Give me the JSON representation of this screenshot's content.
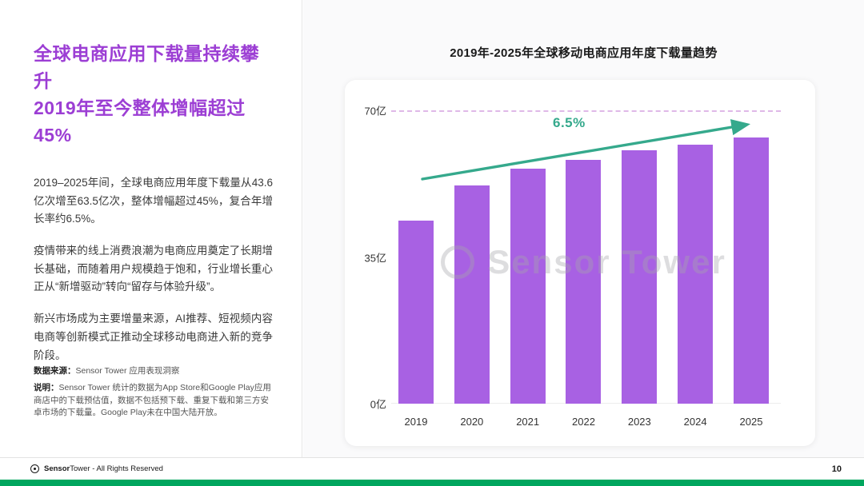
{
  "page": {
    "colors": {
      "accent_purple": "#9C3ED4",
      "bar_purple": "#A861E3",
      "trend_green": "#35A98C",
      "footer_green": "#00A65E"
    },
    "footer": {
      "brand_bold": "Sensor",
      "brand_light": "Tower",
      "rights": " - All Rights Reserved",
      "page_number": "10"
    }
  },
  "left_panel": {
    "title_line1": "全球电商应用下载量持续攀升",
    "title_line2": "2019年至今整体增幅超过45%",
    "paragraphs": [
      "2019–2025年间，全球电商应用年度下载量从43.6亿次增至63.5亿次，整体增幅超过45%，复合年增长率约6.5%。",
      "疫情带来的线上消费浪潮为电商应用奠定了长期增长基础，而随着用户规模趋于饱和，行业增长重心正从“新增驱动”转向“留存与体验升级”。",
      "新兴市场成为主要增量来源，AI推荐、短视频内容电商等创新模式正推动全球移动电商进入新的竞争阶段。"
    ],
    "source_label": "数据来源：",
    "source_text": "Sensor Tower 应用表现洞察",
    "note_label": "说明：",
    "note_text": "Sensor Tower 统计的数据为App Store和Google Play应用商店中的下载预估值，数据不包括预下载、重复下载和第三方安卓市场的下载量。Google Play未在中国大陆开放。"
  },
  "chart": {
    "title": "2019年-2025年全球移动电商应用年度下载量趋势",
    "watermark": "Sensor Tower",
    "growth_label": "6.5%"
  },
  "chart_data": {
    "type": "bar",
    "title": "2019年-2025年全球移动电商应用年度下载量趋势",
    "categories": [
      "2019",
      "2020",
      "2021",
      "2022",
      "2023",
      "2024",
      "2025"
    ],
    "values": [
      43.6,
      52,
      56,
      58.2,
      60.5,
      61.8,
      63.5
    ],
    "unit": "亿次",
    "xlabel": "",
    "ylabel": "",
    "ylim": [
      0,
      70
    ],
    "y_ticks": [
      {
        "label": "70亿",
        "pos": 0
      },
      {
        "label": "35亿",
        "pos": 50
      },
      {
        "label": "0亿",
        "pos": 100
      }
    ],
    "grid": "dashed line at 70亿 only",
    "legend": "none",
    "annotation": {
      "text": "6.5%",
      "type": "trend-arrow"
    }
  }
}
